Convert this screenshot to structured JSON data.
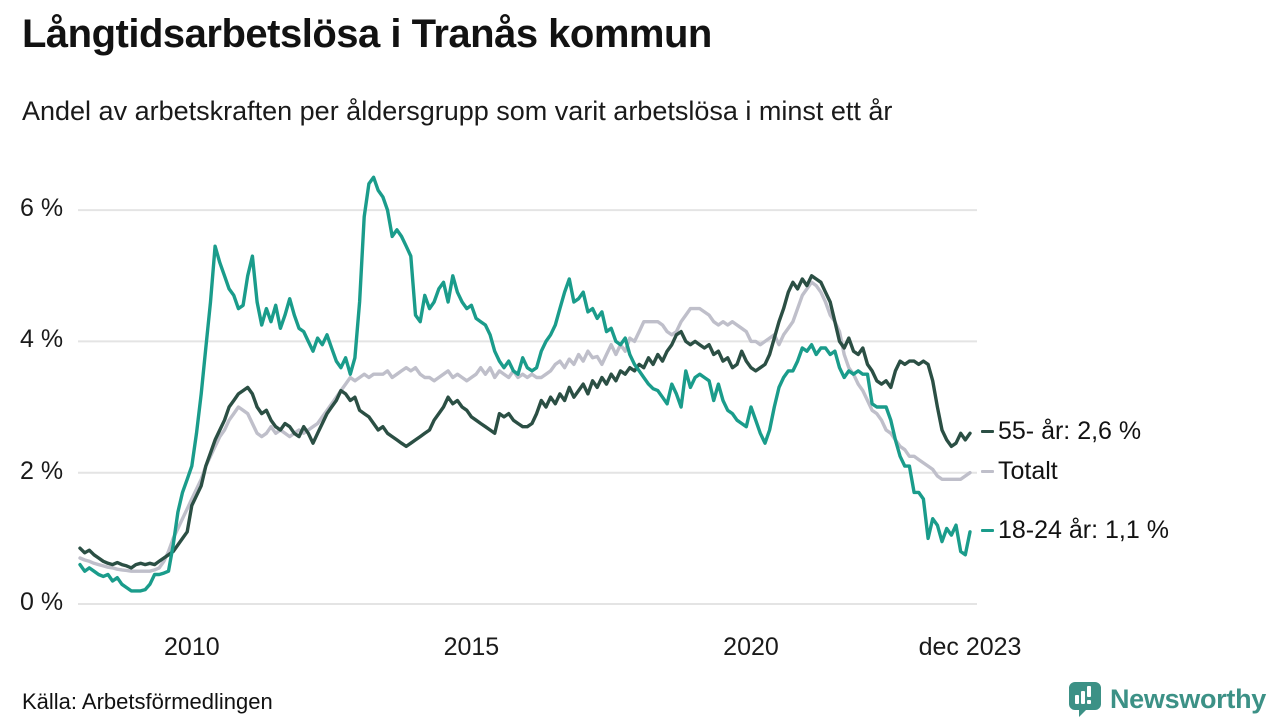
{
  "header": {
    "title": "Långtidsarbetslösa i Tranås kommun",
    "subtitle": "Andel av arbetskraften per åldersgrupp som varit arbetslösa i minst ett år"
  },
  "source": {
    "label": "Källa: Arbetsförmedlingen"
  },
  "branding": {
    "name": "Newsworthy",
    "color": "#3C9186"
  },
  "chart_data": {
    "type": "line",
    "title": "Långtidsarbetslösa i Tranås kommun",
    "subtitle": "Andel av arbetskraften per åldersgrupp som varit arbetslösa i minst ett år",
    "unit": "%",
    "x_start": "jan 2008",
    "x_end": "dec 2023",
    "frequency": "monthly",
    "grid": "horizontal-only",
    "grid_color": "#E4E4E4",
    "ylim": [
      0,
      6.8
    ],
    "y_ticks": [
      {
        "value": 0,
        "label": "0 %"
      },
      {
        "value": 2,
        "label": "2 %"
      },
      {
        "value": 4,
        "label": "4 %"
      },
      {
        "value": 6,
        "label": "6 %"
      }
    ],
    "x_ticks": [
      {
        "label": "2010",
        "month_index": 24
      },
      {
        "label": "2015",
        "month_index": 84
      },
      {
        "label": "2020",
        "month_index": 144
      },
      {
        "label": "dec 2023",
        "month_index": 191
      }
    ],
    "legend_position": "end-of-line-right",
    "series": [
      {
        "name": "Totalt",
        "end_label": "Totalt",
        "end_value": 2.0,
        "color": "#BFBFCA",
        "values": [
          0.7,
          0.67,
          0.65,
          0.62,
          0.6,
          0.58,
          0.56,
          0.55,
          0.53,
          0.52,
          0.51,
          0.5,
          0.5,
          0.5,
          0.5,
          0.5,
          0.52,
          0.55,
          0.65,
          0.8,
          1.0,
          1.15,
          1.3,
          1.45,
          1.6,
          1.75,
          1.9,
          2.1,
          2.25,
          2.4,
          2.55,
          2.65,
          2.8,
          2.9,
          3.0,
          2.95,
          2.9,
          2.75,
          2.6,
          2.55,
          2.6,
          2.7,
          2.6,
          2.65,
          2.6,
          2.55,
          2.6,
          2.65,
          2.6,
          2.65,
          2.7,
          2.75,
          2.85,
          2.95,
          3.05,
          3.15,
          3.25,
          3.35,
          3.45,
          3.4,
          3.45,
          3.5,
          3.45,
          3.5,
          3.5,
          3.5,
          3.55,
          3.45,
          3.5,
          3.55,
          3.6,
          3.55,
          3.6,
          3.5,
          3.45,
          3.45,
          3.4,
          3.45,
          3.5,
          3.55,
          3.45,
          3.5,
          3.45,
          3.4,
          3.45,
          3.5,
          3.6,
          3.5,
          3.6,
          3.45,
          3.55,
          3.5,
          3.45,
          3.55,
          3.45,
          3.5,
          3.45,
          3.5,
          3.45,
          3.45,
          3.5,
          3.55,
          3.65,
          3.7,
          3.6,
          3.73,
          3.65,
          3.8,
          3.7,
          3.85,
          3.75,
          3.77,
          3.65,
          3.8,
          3.95,
          3.8,
          3.95,
          3.85,
          4.05,
          4.0,
          4.15,
          4.3,
          4.3,
          4.3,
          4.3,
          4.25,
          4.15,
          4.1,
          4.15,
          4.3,
          4.4,
          4.5,
          4.5,
          4.5,
          4.45,
          4.4,
          4.3,
          4.25,
          4.3,
          4.25,
          4.3,
          4.25,
          4.2,
          4.15,
          4.0,
          4.0,
          3.95,
          4.0,
          4.05,
          4.1,
          3.95,
          4.1,
          4.2,
          4.3,
          4.5,
          4.7,
          4.8,
          4.9,
          4.85,
          4.75,
          4.6,
          4.4,
          4.3,
          4.15,
          3.8,
          3.6,
          3.5,
          3.35,
          3.25,
          3.1,
          2.95,
          2.9,
          2.8,
          2.65,
          2.6,
          2.5,
          2.4,
          2.35,
          2.25,
          2.25,
          2.2,
          2.15,
          2.1,
          2.05,
          1.95,
          1.9,
          1.9,
          1.9,
          1.9,
          1.9,
          1.95,
          2.0
        ]
      },
      {
        "name": "55- år",
        "end_label": "55- år: 2,6 %",
        "end_value": 2.6,
        "color": "#2B4F44",
        "values": [
          0.85,
          0.78,
          0.82,
          0.75,
          0.7,
          0.65,
          0.62,
          0.6,
          0.63,
          0.6,
          0.58,
          0.55,
          0.6,
          0.62,
          0.6,
          0.62,
          0.6,
          0.65,
          0.7,
          0.75,
          0.8,
          0.9,
          1.0,
          1.1,
          1.5,
          1.65,
          1.8,
          2.1,
          2.3,
          2.5,
          2.65,
          2.8,
          3.0,
          3.1,
          3.2,
          3.25,
          3.3,
          3.2,
          3.0,
          2.9,
          2.95,
          2.8,
          2.7,
          2.65,
          2.75,
          2.7,
          2.6,
          2.55,
          2.7,
          2.6,
          2.45,
          2.6,
          2.75,
          2.9,
          3.0,
          3.1,
          3.25,
          3.2,
          3.1,
          3.15,
          2.95,
          2.9,
          2.85,
          2.75,
          2.65,
          2.7,
          2.6,
          2.55,
          2.5,
          2.45,
          2.4,
          2.45,
          2.5,
          2.55,
          2.6,
          2.65,
          2.8,
          2.9,
          3.0,
          3.15,
          3.05,
          3.1,
          3.0,
          2.95,
          2.85,
          2.8,
          2.75,
          2.7,
          2.65,
          2.6,
          2.9,
          2.85,
          2.9,
          2.8,
          2.75,
          2.7,
          2.7,
          2.75,
          2.9,
          3.1,
          3.0,
          3.15,
          3.05,
          3.2,
          3.1,
          3.3,
          3.15,
          3.25,
          3.35,
          3.2,
          3.4,
          3.3,
          3.45,
          3.35,
          3.5,
          3.4,
          3.55,
          3.5,
          3.6,
          3.55,
          3.65,
          3.6,
          3.75,
          3.65,
          3.8,
          3.7,
          3.85,
          3.95,
          4.1,
          4.15,
          4.0,
          3.95,
          4.0,
          3.95,
          3.9,
          3.95,
          3.8,
          3.85,
          3.7,
          3.75,
          3.6,
          3.65,
          3.85,
          3.7,
          3.6,
          3.55,
          3.6,
          3.65,
          3.8,
          4.05,
          4.3,
          4.5,
          4.75,
          4.9,
          4.8,
          4.95,
          4.85,
          5.0,
          4.95,
          4.9,
          4.75,
          4.6,
          4.3,
          4.0,
          3.9,
          4.05,
          3.85,
          3.8,
          3.9,
          3.65,
          3.55,
          3.4,
          3.35,
          3.4,
          3.3,
          3.55,
          3.7,
          3.65,
          3.7,
          3.7,
          3.65,
          3.7,
          3.65,
          3.4,
          3.0,
          2.65,
          2.5,
          2.4,
          2.45,
          2.6,
          2.5,
          2.6
        ]
      },
      {
        "name": "18-24 år",
        "end_label": "18-24 år: 1,1 %",
        "end_value": 1.1,
        "color": "#1A9C8B",
        "values": [
          0.6,
          0.5,
          0.55,
          0.5,
          0.45,
          0.42,
          0.45,
          0.35,
          0.4,
          0.3,
          0.25,
          0.2,
          0.2,
          0.2,
          0.22,
          0.3,
          0.45,
          0.45,
          0.47,
          0.5,
          0.9,
          1.4,
          1.7,
          1.9,
          2.1,
          2.6,
          3.2,
          3.9,
          4.6,
          5.45,
          5.2,
          5.0,
          4.8,
          4.7,
          4.5,
          4.55,
          5.0,
          5.3,
          4.6,
          4.25,
          4.5,
          4.3,
          4.55,
          4.2,
          4.4,
          4.65,
          4.4,
          4.2,
          4.15,
          4.0,
          3.85,
          4.05,
          3.95,
          4.1,
          3.9,
          3.7,
          3.6,
          3.75,
          3.5,
          3.75,
          4.6,
          5.9,
          6.4,
          6.5,
          6.3,
          6.2,
          6.0,
          5.6,
          5.7,
          5.6,
          5.45,
          5.3,
          4.4,
          4.3,
          4.7,
          4.5,
          4.6,
          4.8,
          4.9,
          4.6,
          5.0,
          4.75,
          4.6,
          4.5,
          4.55,
          4.35,
          4.3,
          4.25,
          4.1,
          3.85,
          3.7,
          3.6,
          3.7,
          3.55,
          3.5,
          3.75,
          3.6,
          3.55,
          3.6,
          3.85,
          4.0,
          4.1,
          4.25,
          4.5,
          4.75,
          4.95,
          4.6,
          4.65,
          4.75,
          4.45,
          4.5,
          4.35,
          4.45,
          4.15,
          4.2,
          4.0,
          3.95,
          4.05,
          3.8,
          3.65,
          3.55,
          3.45,
          3.35,
          3.28,
          3.25,
          3.15,
          3.05,
          3.35,
          3.2,
          3.0,
          3.55,
          3.3,
          3.45,
          3.5,
          3.45,
          3.4,
          3.1,
          3.35,
          3.1,
          2.95,
          2.9,
          2.8,
          2.75,
          2.7,
          3.0,
          2.8,
          2.6,
          2.45,
          2.65,
          3.0,
          3.3,
          3.45,
          3.55,
          3.55,
          3.7,
          3.9,
          3.85,
          3.95,
          3.8,
          3.9,
          3.9,
          3.8,
          3.85,
          3.6,
          3.45,
          3.55,
          3.5,
          3.55,
          3.5,
          3.5,
          3.05,
          3.0,
          3.0,
          3.0,
          2.8,
          2.5,
          2.25,
          2.1,
          2.1,
          1.7,
          1.7,
          1.6,
          1.0,
          1.3,
          1.2,
          0.95,
          1.15,
          1.05,
          1.2,
          0.8,
          0.75,
          1.1
        ]
      }
    ]
  }
}
